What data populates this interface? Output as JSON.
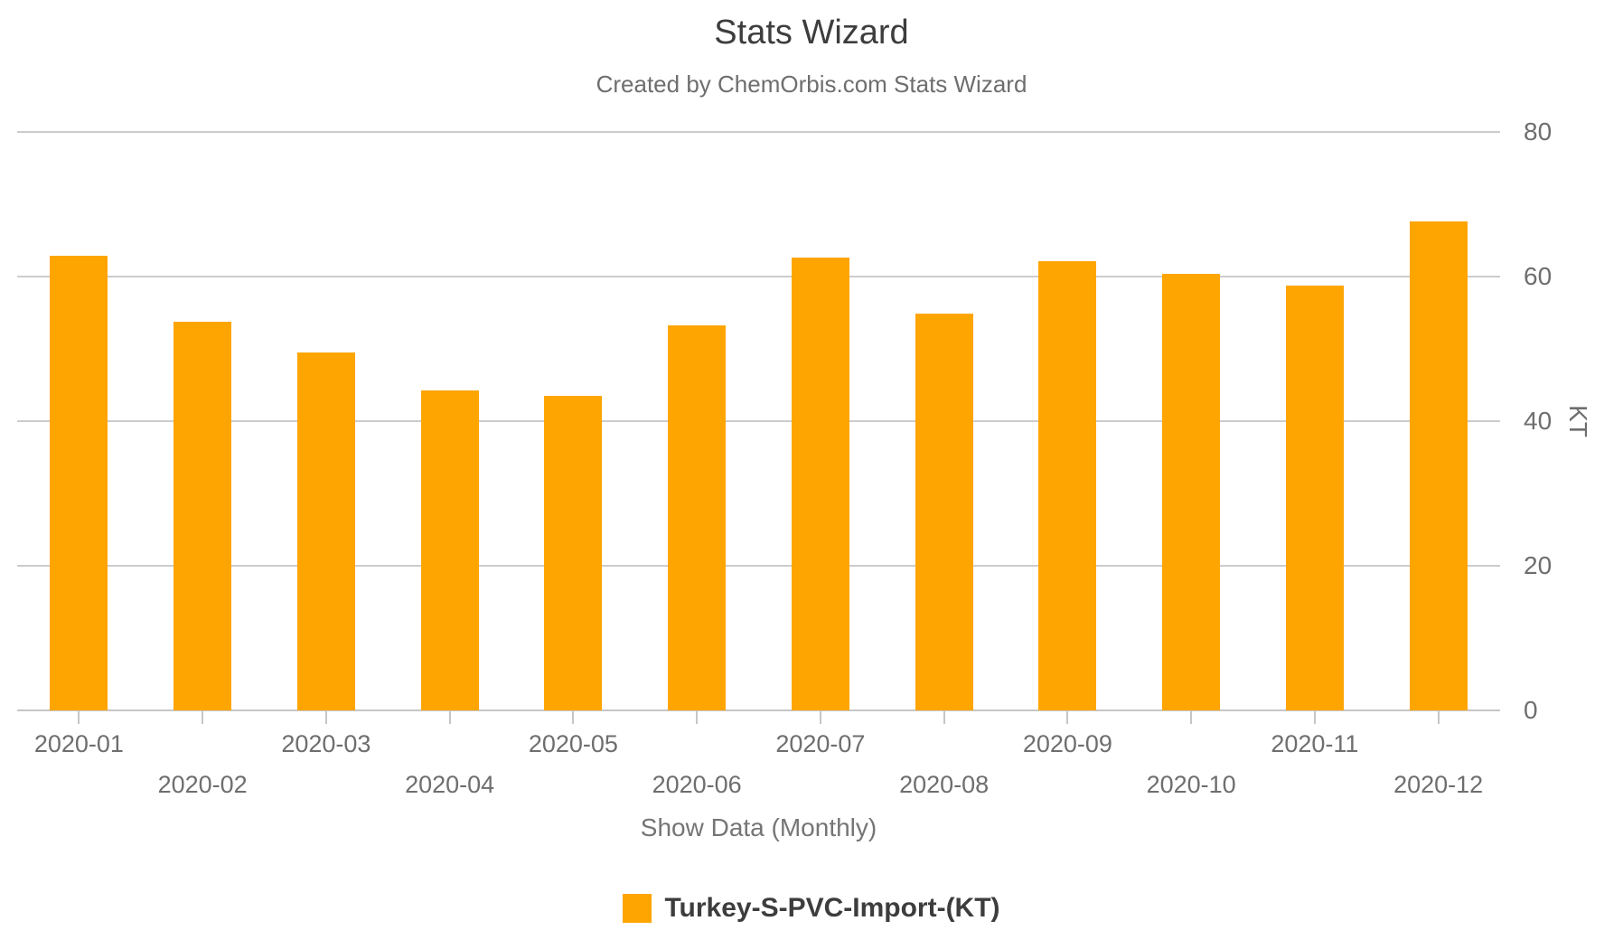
{
  "header": {
    "title": "Stats Wizard",
    "subtitle": "Created by ChemOrbis.com Stats Wizard"
  },
  "chart_data": {
    "type": "bar",
    "title": "Stats Wizard",
    "subtitle": "Created by ChemOrbis.com Stats Wizard",
    "categories": [
      "2020-01",
      "2020-02",
      "2020-03",
      "2020-04",
      "2020-05",
      "2020-06",
      "2020-07",
      "2020-08",
      "2020-09",
      "2020-10",
      "2020-11",
      "2020-12"
    ],
    "series": [
      {
        "name": "Turkey-S-PVC-Import-(KT)",
        "values": [
          62.9,
          53.7,
          49.5,
          44.3,
          43.5,
          53.3,
          62.6,
          54.9,
          62.1,
          60.4,
          58.7,
          67.6
        ]
      }
    ],
    "xlabel": "",
    "ylabel": "KT",
    "ylim": [
      0,
      80
    ],
    "yticks": [
      0,
      20,
      40,
      60,
      80
    ],
    "grid": true,
    "legend_position": "bottom",
    "bar_color": "#FFA502"
  },
  "footer": {
    "show_data_label": "Show Data (Monthly)",
    "legend": {
      "label": "Turkey-S-PVC-Import-(KT)",
      "color": "#FFA502"
    }
  },
  "colors": {
    "bar": "#FFA502",
    "gridline": "#cccccc",
    "axis_line": "#c6c6c6",
    "title_text": "#3d3d3d",
    "label_text": "#6e6e6e",
    "show_data_text": "#757575"
  }
}
